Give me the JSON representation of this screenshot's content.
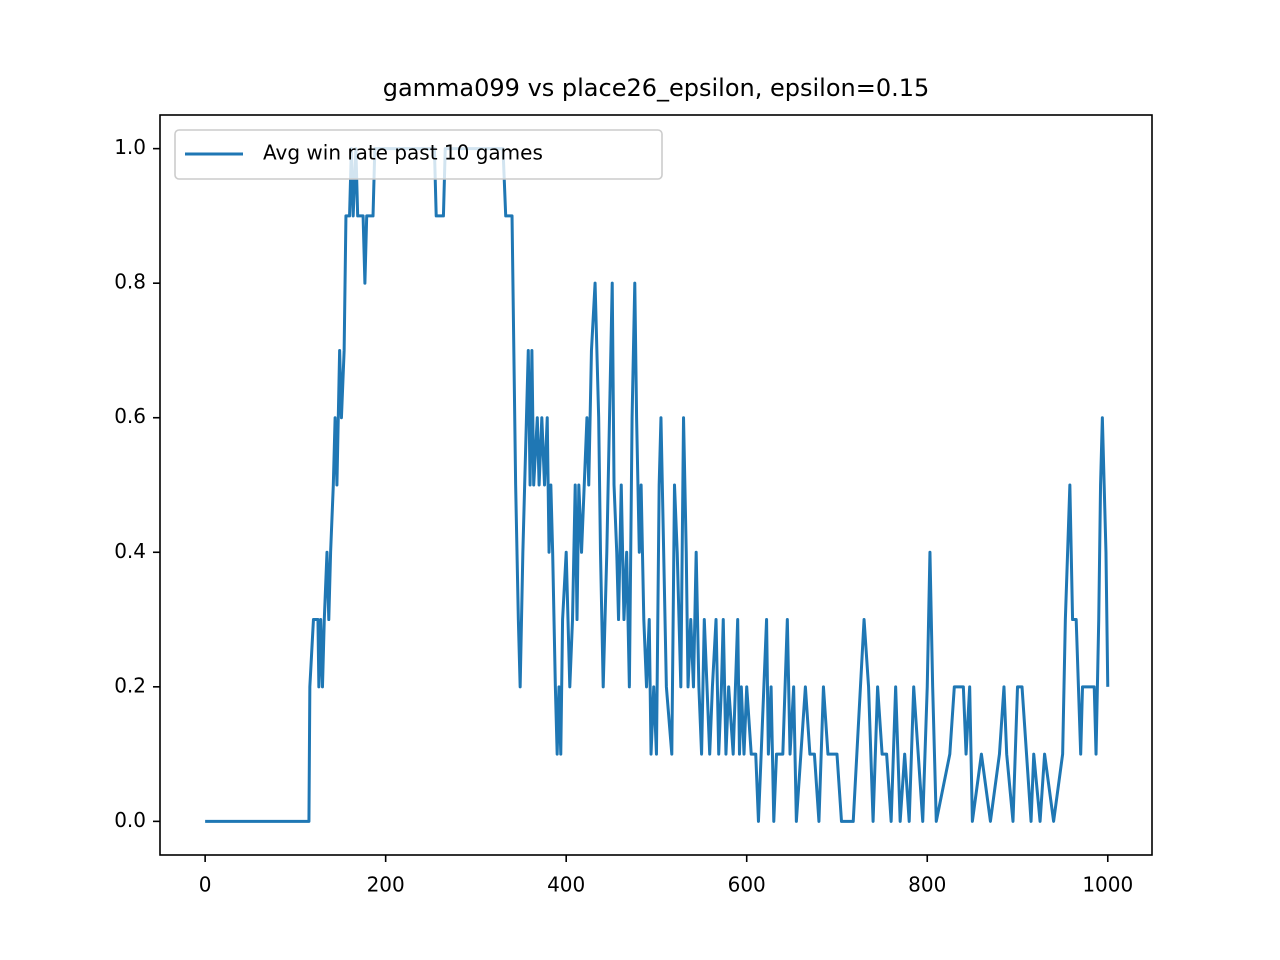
{
  "chart_data": {
    "type": "line",
    "title": "gamma099 vs place26_epsilon, epsilon=0.15",
    "x": [
      0,
      115,
      116,
      120,
      125,
      126,
      128,
      130,
      132,
      135,
      137,
      139,
      142,
      144,
      146,
      149,
      151,
      154,
      156,
      160,
      162,
      164,
      167,
      169,
      175,
      177,
      179,
      186,
      188,
      254,
      256,
      264,
      266,
      330,
      333,
      340,
      344,
      347,
      349,
      352,
      356,
      358,
      360,
      362,
      364,
      368,
      370,
      373,
      376,
      379,
      381,
      383,
      385,
      388,
      390,
      392,
      394,
      396,
      400,
      402,
      404,
      407,
      410,
      412,
      414,
      417,
      420,
      423,
      425,
      428,
      432,
      436,
      438,
      441,
      445,
      448,
      451,
      453,
      456,
      458,
      461,
      464,
      467,
      470,
      473,
      476,
      478,
      481,
      483,
      486,
      489,
      492,
      494,
      497,
      500,
      503,
      505,
      508,
      511,
      517,
      520,
      523,
      527,
      530,
      533,
      535,
      538,
      541,
      544,
      547,
      550,
      553,
      556,
      559,
      562,
      566,
      569,
      572,
      574,
      577,
      580,
      585,
      590,
      592,
      594,
      597,
      600,
      605,
      610,
      613,
      616,
      619,
      622,
      624,
      627,
      630,
      633,
      640,
      645,
      648,
      652,
      655,
      660,
      665,
      670,
      675,
      680,
      685,
      690,
      700,
      705,
      718,
      722,
      730,
      735,
      740,
      745,
      750,
      755,
      760,
      765,
      770,
      775,
      780,
      785,
      790,
      795,
      800,
      803,
      806,
      810,
      825,
      830,
      840,
      843,
      847,
      850,
      860,
      870,
      880,
      885,
      888,
      895,
      900,
      905,
      910,
      915,
      918,
      925,
      930,
      940,
      950,
      953,
      958,
      961,
      965,
      970,
      972,
      985,
      987,
      990,
      992,
      994,
      996,
      998,
      1000
    ],
    "series": [
      {
        "name": "Avg win rate past 10 games",
        "color": "#1f77b4",
        "values": [
          0,
          0,
          0.2,
          0.3,
          0.3,
          0.2,
          0.3,
          0.2,
          0.3,
          0.4,
          0.3,
          0.4,
          0.5,
          0.6,
          0.5,
          0.7,
          0.6,
          0.7,
          0.9,
          0.9,
          1.0,
          0.9,
          1.0,
          0.9,
          0.9,
          0.8,
          0.9,
          0.9,
          1.0,
          1.0,
          0.9,
          0.9,
          1.0,
          1.0,
          0.9,
          0.9,
          0.5,
          0.3,
          0.2,
          0.4,
          0.6,
          0.7,
          0.5,
          0.7,
          0.5,
          0.6,
          0.5,
          0.6,
          0.5,
          0.6,
          0.4,
          0.5,
          0.4,
          0.2,
          0.1,
          0.2,
          0.1,
          0.3,
          0.4,
          0.3,
          0.2,
          0.3,
          0.5,
          0.3,
          0.5,
          0.4,
          0.5,
          0.6,
          0.5,
          0.7,
          0.8,
          0.6,
          0.4,
          0.2,
          0.4,
          0.6,
          0.8,
          0.5,
          0.4,
          0.3,
          0.5,
          0.3,
          0.4,
          0.2,
          0.6,
          0.8,
          0.6,
          0.4,
          0.5,
          0.3,
          0.2,
          0.3,
          0.1,
          0.2,
          0.1,
          0.5,
          0.6,
          0.4,
          0.2,
          0.1,
          0.5,
          0.4,
          0.2,
          0.6,
          0.4,
          0.2,
          0.3,
          0.2,
          0.4,
          0.2,
          0.1,
          0.3,
          0.2,
          0.1,
          0.2,
          0.3,
          0.1,
          0.2,
          0.3,
          0.1,
          0.2,
          0.1,
          0.3,
          0.1,
          0.2,
          0.1,
          0.2,
          0.1,
          0.1,
          0,
          0.1,
          0.2,
          0.3,
          0.1,
          0.2,
          0,
          0.1,
          0.1,
          0.3,
          0.1,
          0.2,
          0,
          0.1,
          0.2,
          0.1,
          0.1,
          0,
          0.2,
          0.1,
          0.1,
          0,
          0,
          0.1,
          0.3,
          0.2,
          0,
          0.2,
          0.1,
          0.1,
          0,
          0.2,
          0,
          0.1,
          0,
          0.2,
          0.1,
          0,
          0.2,
          0.4,
          0.2,
          0,
          0.1,
          0.2,
          0.2,
          0.1,
          0.2,
          0,
          0.1,
          0,
          0.1,
          0.2,
          0.1,
          0,
          0.2,
          0.2,
          0.1,
          0,
          0.1,
          0,
          0.1,
          0,
          0.1,
          0.3,
          0.5,
          0.3,
          0.3,
          0.1,
          0.2,
          0.2,
          0.1,
          0.3,
          0.5,
          0.6,
          0.5,
          0.4,
          0.2
        ]
      }
    ],
    "xlim": [
      -50,
      1049
    ],
    "xticks": [
      0,
      200,
      400,
      600,
      800,
      1000
    ],
    "ylim": [
      -0.05,
      1.05
    ],
    "yticks": [
      {
        "value": 0,
        "label": "0.0"
      },
      {
        "value": 0.2,
        "label": "0.2"
      },
      {
        "value": 0.4,
        "label": "0.4"
      },
      {
        "value": 0.6,
        "label": "0.6"
      },
      {
        "value": 0.8,
        "label": "0.8"
      },
      {
        "value": 1,
        "label": "1.0"
      }
    ],
    "legend": "upper left",
    "grid": false
  }
}
